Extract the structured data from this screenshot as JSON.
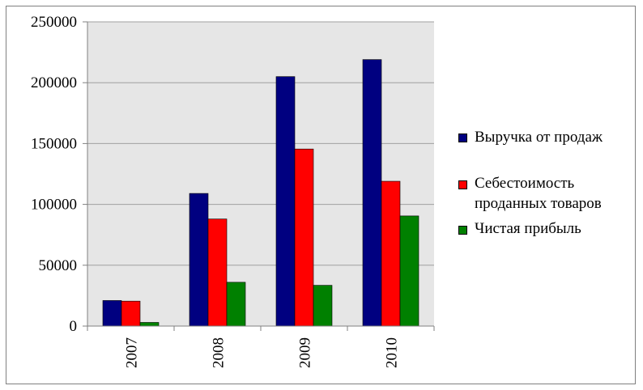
{
  "chart_data": {
    "type": "bar",
    "title": "",
    "xlabel": "",
    "ylabel": "",
    "categories": [
      "2007",
      "2008",
      "2009",
      "2010"
    ],
    "series": [
      {
        "name": "Выручка от продаж",
        "color": "#000080",
        "values": [
          21000,
          109000,
          205000,
          219000
        ]
      },
      {
        "name": "Себестоимость проданных товаров",
        "name_lines": [
          "Себестоимость",
          "проданных товаров"
        ],
        "color": "#ff0000",
        "values": [
          20500,
          88000,
          145500,
          119000
        ]
      },
      {
        "name": "Чистая прибыль",
        "color": "#008000",
        "values": [
          3000,
          36000,
          33500,
          90500
        ]
      }
    ],
    "ylim": [
      0,
      250000
    ],
    "yticks": [
      0,
      50000,
      100000,
      150000,
      200000,
      250000
    ],
    "grid": true,
    "legend": "right",
    "plot_background": "#e6e6e6"
  }
}
